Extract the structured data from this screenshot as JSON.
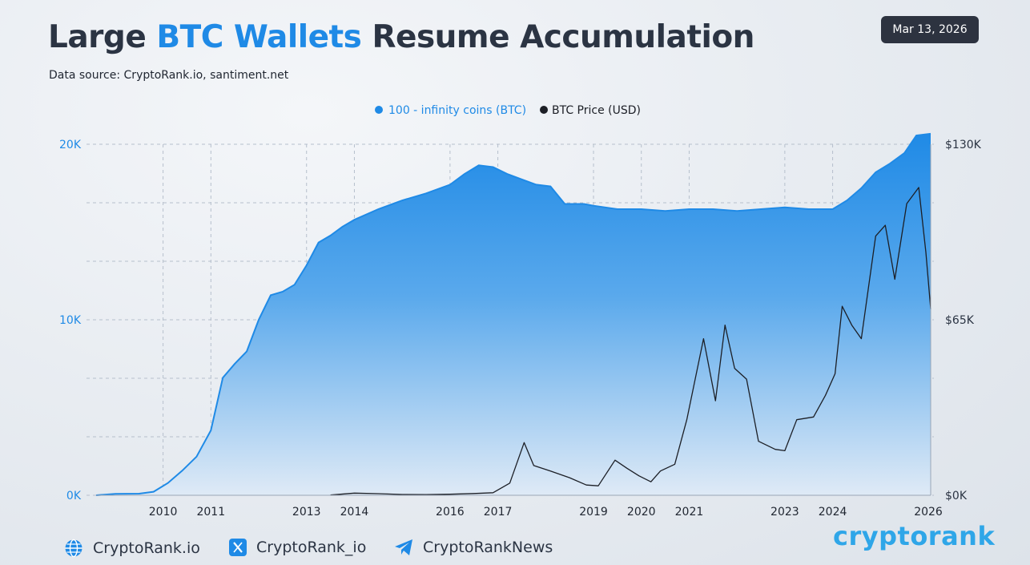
{
  "header": {
    "title_part1": "Large ",
    "title_highlight": "BTC Wallets",
    "title_part2": " Resume Accumulation",
    "source": "Data source: CryptoRank.io, santiment.net",
    "date": "Mar 13, 2026"
  },
  "chart_data": {
    "type": "area",
    "legend_placement": "top-center",
    "grid": true,
    "x_axis": {
      "range": [
        2008.6,
        2026.05
      ],
      "ticks": [
        2010,
        2011,
        2013,
        2014,
        2016,
        2017,
        2019,
        2020,
        2021,
        2023,
        2024,
        2026
      ],
      "tick_labels": [
        "2010",
        "2011",
        "2013",
        "2014",
        "2016",
        "2017",
        "2019",
        "2020",
        "2021",
        "2023",
        "2024",
        "2026"
      ]
    },
    "y_left": {
      "range": [
        0,
        20000
      ],
      "ticks": [
        0,
        10000,
        20000
      ],
      "tick_labels": [
        "0K",
        "10K",
        "20K"
      ]
    },
    "y_right": {
      "range": [
        0,
        130000
      ],
      "ticks": [
        0,
        65000,
        130000
      ],
      "tick_labels": [
        "$0K",
        "$65K",
        "$130K"
      ]
    },
    "series": [
      {
        "name": "100 - infinity coins (BTC)",
        "axis": "left",
        "color": "#1f8ae6",
        "points": [
          [
            2008.6,
            0
          ],
          [
            2009.0,
            80
          ],
          [
            2009.5,
            90
          ],
          [
            2009.8,
            200
          ],
          [
            2010.1,
            700
          ],
          [
            2010.4,
            1400
          ],
          [
            2010.7,
            2200
          ],
          [
            2011.0,
            3700
          ],
          [
            2011.25,
            6700
          ],
          [
            2011.5,
            7500
          ],
          [
            2011.75,
            8200
          ],
          [
            2012.0,
            10000
          ],
          [
            2012.25,
            11400
          ],
          [
            2012.5,
            11600
          ],
          [
            2012.75,
            12000
          ],
          [
            2013.0,
            13100
          ],
          [
            2013.25,
            14400
          ],
          [
            2013.5,
            14800
          ],
          [
            2013.75,
            15300
          ],
          [
            2014.0,
            15700
          ],
          [
            2014.5,
            16300
          ],
          [
            2015.0,
            16800
          ],
          [
            2015.5,
            17200
          ],
          [
            2016.0,
            17700
          ],
          [
            2016.3,
            18300
          ],
          [
            2016.6,
            18800
          ],
          [
            2016.9,
            18700
          ],
          [
            2017.2,
            18300
          ],
          [
            2017.5,
            18000
          ],
          [
            2017.8,
            17700
          ],
          [
            2018.1,
            17600
          ],
          [
            2018.4,
            16600
          ],
          [
            2018.8,
            16600
          ],
          [
            2019.0,
            16500
          ],
          [
            2019.5,
            16300
          ],
          [
            2020.0,
            16300
          ],
          [
            2020.5,
            16200
          ],
          [
            2021.0,
            16300
          ],
          [
            2021.5,
            16300
          ],
          [
            2022.0,
            16200
          ],
          [
            2022.5,
            16300
          ],
          [
            2023.0,
            16400
          ],
          [
            2023.5,
            16300
          ],
          [
            2024.0,
            16300
          ],
          [
            2024.3,
            16800
          ],
          [
            2024.6,
            17500
          ],
          [
            2024.9,
            18400
          ],
          [
            2025.2,
            18900
          ],
          [
            2025.5,
            19500
          ],
          [
            2025.75,
            20500
          ],
          [
            2026.05,
            20600
          ]
        ]
      },
      {
        "name": "BTC Price (USD)",
        "axis": "right",
        "color": "#1c1f26",
        "points": [
          [
            2013.5,
            100
          ],
          [
            2014.0,
            800
          ],
          [
            2014.5,
            600
          ],
          [
            2015.0,
            300
          ],
          [
            2015.5,
            250
          ],
          [
            2016.0,
            400
          ],
          [
            2016.5,
            650
          ],
          [
            2016.9,
            950
          ],
          [
            2017.25,
            4500
          ],
          [
            2017.55,
            19500
          ],
          [
            2017.75,
            11000
          ],
          [
            2018.1,
            9000
          ],
          [
            2018.5,
            6500
          ],
          [
            2018.85,
            3800
          ],
          [
            2019.1,
            3500
          ],
          [
            2019.45,
            13000
          ],
          [
            2019.7,
            10000
          ],
          [
            2019.95,
            7200
          ],
          [
            2020.2,
            5000
          ],
          [
            2020.4,
            9000
          ],
          [
            2020.7,
            11500
          ],
          [
            2020.95,
            28000
          ],
          [
            2021.3,
            58000
          ],
          [
            2021.55,
            35000
          ],
          [
            2021.75,
            63000
          ],
          [
            2021.95,
            47000
          ],
          [
            2022.2,
            43000
          ],
          [
            2022.45,
            20000
          ],
          [
            2022.8,
            17000
          ],
          [
            2023.0,
            16500
          ],
          [
            2023.25,
            28000
          ],
          [
            2023.6,
            29000
          ],
          [
            2023.85,
            37000
          ],
          [
            2024.05,
            45000
          ],
          [
            2024.2,
            70000
          ],
          [
            2024.4,
            63000
          ],
          [
            2024.6,
            58000
          ],
          [
            2024.9,
            96000
          ],
          [
            2025.1,
            100000
          ],
          [
            2025.3,
            80000
          ],
          [
            2025.55,
            108000
          ],
          [
            2025.8,
            114000
          ],
          [
            2025.95,
            90000
          ],
          [
            2026.05,
            69000
          ]
        ]
      }
    ]
  },
  "footer": {
    "website": "CryptoRank.io",
    "x_handle": "CryptoRank_io",
    "telegram": "CryptoRankNews",
    "brand": "cryptorank",
    "globe_icon_color": "#1f8ae6",
    "x_icon_color": "#1f8ae6",
    "telegram_icon_color": "#1f8ae6"
  }
}
